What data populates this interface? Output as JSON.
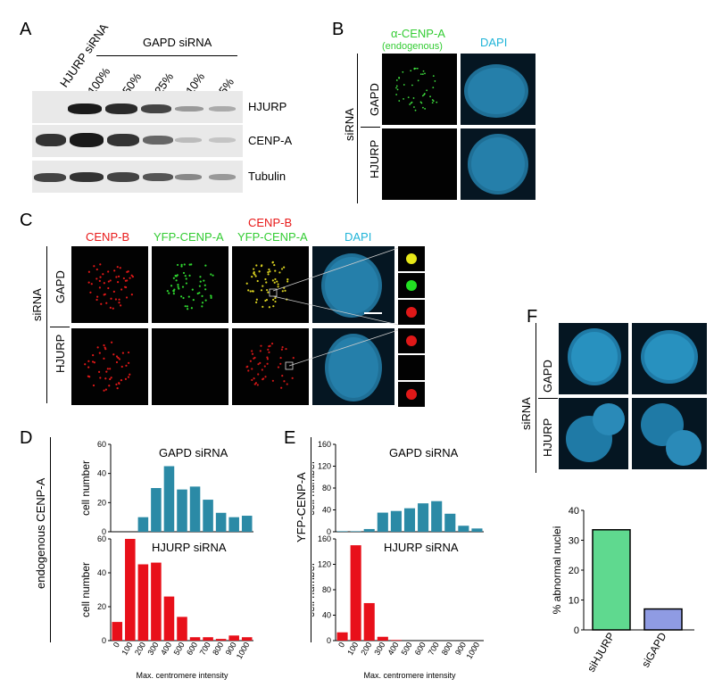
{
  "panels": {
    "A": {
      "letter": "A",
      "lane_label_hjurp": "HJURP siRNA",
      "group_label": "GAPD siRNA",
      "lane_labels": [
        "100%",
        "50%",
        "25%",
        "10%",
        "5%"
      ],
      "blot_labels": [
        "HJURP",
        "CENP-A",
        "Tubulin"
      ]
    },
    "B": {
      "letter": "B",
      "stain_title": "α-CENP-A",
      "stain_subtitle": "(endogenous)",
      "dapi": "DAPI",
      "sirna": "siRNA",
      "rows": [
        "GAPD",
        "HJURP"
      ]
    },
    "C": {
      "letter": "C",
      "col_titles": [
        "CENP-B",
        "YFP-CENP-A"
      ],
      "merge_title_top": "CENP-B",
      "merge_title_bottom": "YFP-CENP-A",
      "dapi": "DAPI",
      "sirna": "siRNA",
      "rows": [
        "GAPD",
        "HJURP"
      ]
    },
    "D": {
      "letter": "D",
      "y_group_label": "endogenous CENP-A",
      "ylabel": "cell number",
      "xlabel": "Max. centromere intensity",
      "top_title": "GAPD siRNA",
      "bottom_title": "HJURP siRNA"
    },
    "E": {
      "letter": "E",
      "y_group_label": "YFP-CENP-A",
      "ylabel": "cell number",
      "xlabel": "Max. centromere intensity",
      "top_title": "GAPD siRNA",
      "bottom_title": "HJURP siRNA"
    },
    "F": {
      "letter": "F",
      "sirna": "siRNA",
      "rows": [
        "GAPD",
        "HJURP"
      ]
    }
  },
  "colors": {
    "teal_bar": "#2b8aa6",
    "red_bar": "#e8101a",
    "green_bar": "#5fd98f",
    "blue_bar": "#8f9be3",
    "green_label": "#33cc33",
    "cyan_label": "#1fb4d8",
    "red_label": "#e81818"
  },
  "chart_data": [
    {
      "id": "D-top",
      "type": "bar",
      "title": "GAPD siRNA",
      "ylabel": "cell number",
      "categories": [
        "0",
        "100",
        "200",
        "300",
        "400",
        "500",
        "600",
        "700",
        "800",
        "900",
        "1000"
      ],
      "values": [
        0,
        0,
        10,
        30,
        45,
        29,
        31,
        22,
        13,
        10,
        11
      ],
      "ylim": [
        0,
        60
      ],
      "yticks": [
        0,
        20,
        40,
        60
      ]
    },
    {
      "id": "D-bottom",
      "type": "bar",
      "title": "HJURP siRNA",
      "ylabel": "cell number",
      "xlabel": "Max. centromere intensity",
      "categories": [
        "0",
        "100",
        "200",
        "300",
        "400",
        "500",
        "600",
        "700",
        "800",
        "900",
        "1000"
      ],
      "values": [
        11,
        68,
        45,
        46,
        26,
        14,
        2,
        2,
        1,
        3,
        2
      ],
      "ylim": [
        0,
        60
      ],
      "yticks": [
        0,
        20,
        40,
        60
      ]
    },
    {
      "id": "E-top",
      "type": "bar",
      "title": "GAPD siRNA",
      "ylabel": "cell number",
      "categories": [
        "0",
        "100",
        "200",
        "300",
        "400",
        "500",
        "600",
        "700",
        "800",
        "900",
        "1000"
      ],
      "values": [
        1,
        1,
        5,
        35,
        38,
        43,
        52,
        56,
        33,
        11,
        6
      ],
      "ylim": [
        0,
        160
      ],
      "yticks": [
        0,
        40,
        80,
        120,
        160
      ]
    },
    {
      "id": "E-bottom",
      "type": "bar",
      "title": "HJURP siRNA",
      "ylabel": "cell number",
      "xlabel": "Max. centromere intensity",
      "categories": [
        "0",
        "100",
        "200",
        "300",
        "400",
        "500",
        "600",
        "700",
        "800",
        "900",
        "1000"
      ],
      "values": [
        13,
        150,
        59,
        6,
        1,
        0,
        0,
        0,
        0,
        0,
        0
      ],
      "ylim": [
        0,
        160
      ],
      "yticks": [
        0,
        40,
        80,
        120,
        160
      ]
    },
    {
      "id": "F-bar",
      "type": "bar",
      "ylabel": "% abnormal nuclei",
      "categories": [
        "siHJURP",
        "siGAPD"
      ],
      "values": [
        33.5,
        7
      ],
      "ylim": [
        0,
        40
      ],
      "yticks": [
        0,
        10,
        20,
        30,
        40
      ]
    }
  ]
}
